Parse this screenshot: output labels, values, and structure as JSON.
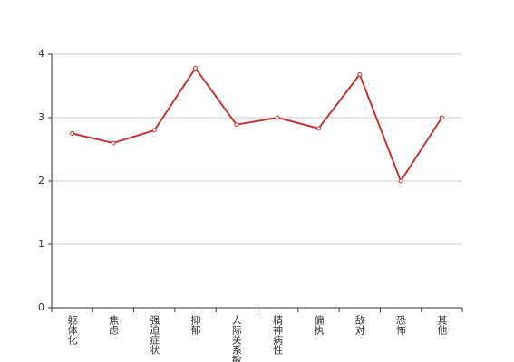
{
  "chart_data": {
    "type": "line",
    "categories": [
      "躯体化",
      "焦虑",
      "强迫症状",
      "抑郁",
      "人际关系敏感",
      "精神病性",
      "偏执",
      "敌对",
      "恐怖",
      "其他"
    ],
    "values": [
      2.75,
      2.6,
      2.8,
      3.78,
      2.89,
      3.0,
      2.83,
      3.68,
      2.0,
      3.0
    ],
    "color": "#c23531",
    "ylim": [
      0,
      4
    ],
    "yticks": [
      0,
      1,
      2,
      3,
      4
    ],
    "grid": true
  }
}
